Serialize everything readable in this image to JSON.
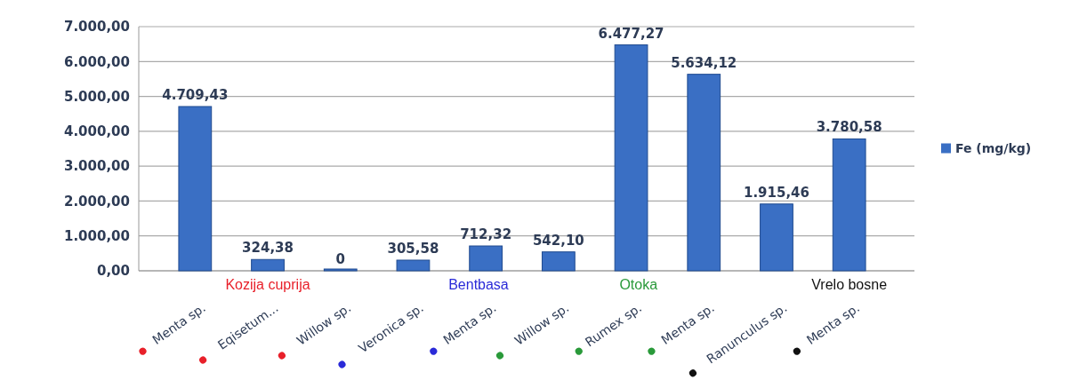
{
  "chart_data": {
    "type": "bar",
    "categories": [
      "Menta sp.",
      "Eqisetum...",
      "Willow sp.",
      "Veronica sp.",
      "Menta sp.",
      "Willow sp.",
      "Rumex sp.",
      "Menta sp.",
      "Ranunculus sp.",
      "Menta sp."
    ],
    "series": [
      {
        "name": "Fe (mg/kg)",
        "color": "#3a6fc4",
        "values": [
          4709.43,
          324.38,
          0,
          305.58,
          712.32,
          542.1,
          6477.27,
          5634.12,
          1915.46,
          3780.58
        ],
        "value_labels": [
          "4.709,43",
          "324,38",
          "0",
          "305,58",
          "712,32",
          "542,10",
          "6.477,27",
          "5.634,12",
          "1.915,46",
          "3.780,58"
        ]
      }
    ],
    "ylim": [
      0,
      7000
    ],
    "yticks": [
      {
        "value": 0,
        "label": "0,00"
      },
      {
        "value": 1000,
        "label": "1.000,00"
      },
      {
        "value": 2000,
        "label": "2.000,00"
      },
      {
        "value": 3000,
        "label": "3.000,00"
      },
      {
        "value": 4000,
        "label": "4.000,00"
      },
      {
        "value": 5000,
        "label": "5.000,00"
      },
      {
        "value": 6000,
        "label": "6.000,00"
      },
      {
        "value": 7000,
        "label": "7.000,00"
      }
    ],
    "grid": "y",
    "legend": "right",
    "annotations": [
      "Kozija cuprija",
      "Bentbasa",
      "Otoka",
      "Vrelo bosne"
    ]
  }
}
